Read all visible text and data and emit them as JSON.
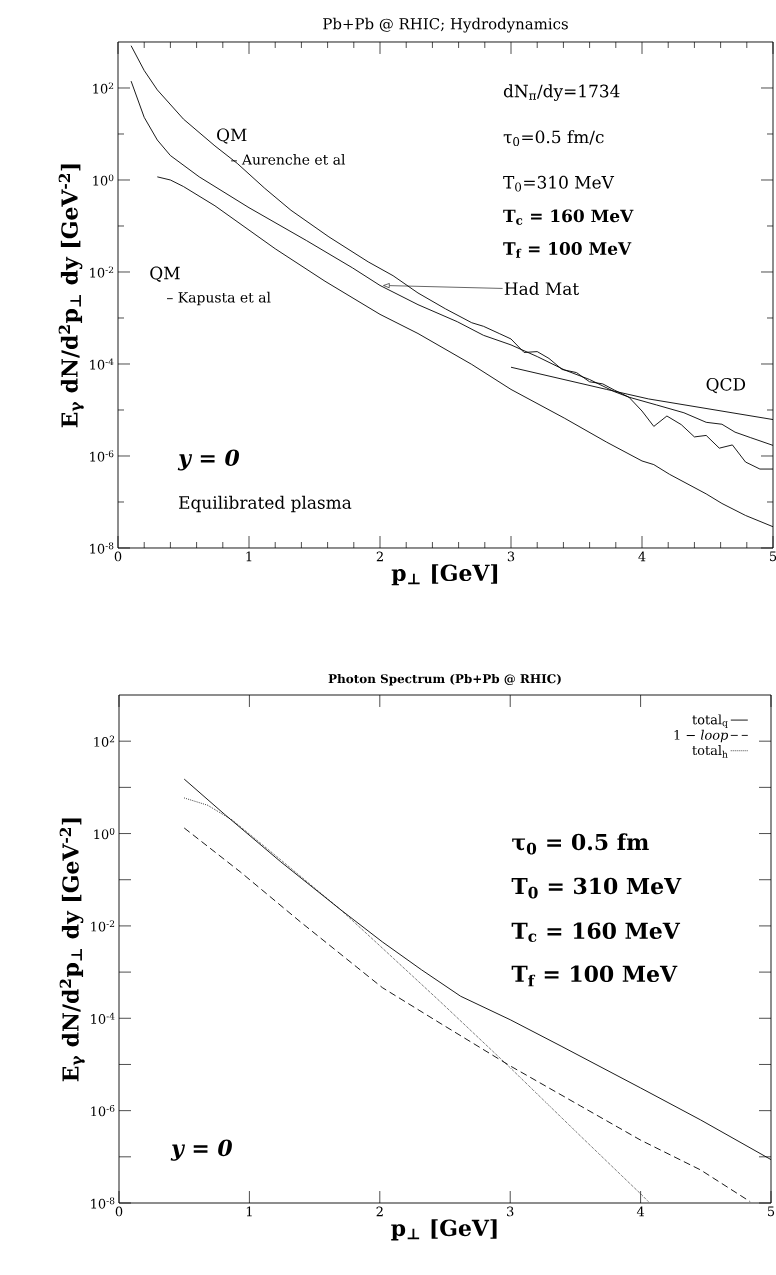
{
  "chart_data": [
    {
      "type": "line",
      "title": "Pb+Pb @ RHIC; Hydrodynamics",
      "xlabel": "p$_{⊥}$ [GeV]",
      "ylabel": "E$_{γ}$ dN/d$^{2}$p$_{⊥}$ dy [GeV$^{-2}$]",
      "log": "y",
      "grid": false,
      "legend": false,
      "marker": "none",
      "xlim": [
        0,
        5
      ],
      "ylim": [
        1e-08,
        1000
      ],
      "xticks": [
        0,
        1,
        2,
        3,
        4,
        5,
        {
          "value": 0.2,
          "label": null
        },
        {
          "value": 0.4,
          "label": null
        },
        {
          "value": 0.6,
          "label": null
        },
        {
          "value": 0.8,
          "label": null
        },
        {
          "value": 1.2,
          "label": null
        },
        {
          "value": 1.4,
          "label": null
        },
        {
          "value": 1.6,
          "label": null
        },
        {
          "value": 1.8,
          "label": null
        },
        {
          "value": 2.2,
          "label": null
        },
        {
          "value": 2.4,
          "label": null
        },
        {
          "value": 2.6,
          "label": null
        },
        {
          "value": 2.8,
          "label": null
        },
        {
          "value": 3.2,
          "label": null
        },
        {
          "value": 3.4,
          "label": null
        },
        {
          "value": 3.6,
          "label": null
        },
        {
          "value": 3.8,
          "label": null
        },
        {
          "value": 4.2,
          "label": null
        },
        {
          "value": 4.4,
          "label": null
        },
        {
          "value": 4.6,
          "label": null
        },
        {
          "value": 4.8,
          "label": null
        }
      ],
      "yticks": [
        {
          "value": 1e-08,
          "label": "10$^{-8}$"
        },
        {
          "value": 1e-06,
          "label": "10$^{-6}$"
        },
        {
          "value": 0.0001,
          "label": "10$^{-4}$"
        },
        {
          "value": 0.01,
          "label": "10$^{-2}$"
        },
        {
          "value": 1,
          "label": "10$^{0}$"
        },
        {
          "value": 100,
          "label": "10$^{2}$"
        },
        {
          "value": 1e-07,
          "label": null
        },
        {
          "value": 1e-05,
          "label": null
        },
        {
          "value": 0.001,
          "label": null
        },
        {
          "value": 0.1,
          "label": null
        },
        {
          "value": 10,
          "label": null
        }
      ],
      "series": [
        {
          "color": "#000000",
          "line_style": "solid",
          "x": [
            0.1,
            0.2,
            0.3,
            0.5,
            0.74,
            0.91,
            1.12,
            1.32,
            1.61,
            1.91,
            2.1,
            2.29,
            2.5,
            2.7,
            2.79,
            2.91,
            3.0,
            3.1,
            3.2,
            3.29,
            3.39,
            3.5,
            3.6,
            3.7,
            3.79,
            3.9,
            4.0,
            4.09,
            4.19,
            4.3,
            4.4,
            4.49,
            4.59,
            4.69,
            4.79,
            4.9,
            5.0
          ],
          "values": [
            830,
            240,
            91,
            21,
            5.5,
            2.3,
            0.66,
            0.22,
            0.058,
            0.0166,
            0.0083,
            0.0035,
            0.00158,
            0.00079,
            0.00066,
            0.00046,
            0.00035,
            0.000178,
            0.000186,
            0.000132,
            7.6e-05,
            6.5e-05,
            4.1e-05,
            3.7e-05,
            2.7e-05,
            1.9e-05,
            9.5e-06,
            4.4e-06,
            7.4e-06,
            4.8e-06,
            2.6e-06,
            2.8e-06,
            1.48e-06,
            1.74e-06,
            7.4e-07,
            5.2e-07,
            5.2e-07
          ]
        },
        {
          "color": "#000000",
          "line_style": "solid",
          "x": [
            0.1,
            0.2,
            0.3,
            0.4,
            0.62,
            1.0,
            1.44,
            1.79,
            2.0,
            2.29,
            2.59,
            2.79,
            3.0,
            3.2,
            3.41,
            3.6,
            3.79,
            3.9,
            4.11,
            4.32,
            4.49,
            4.61,
            4.71,
            4.83,
            5.0
          ],
          "values": [
            141,
            23,
            7.4,
            3.4,
            1.17,
            0.25,
            0.048,
            0.0123,
            0.0051,
            0.00195,
            0.00083,
            0.00042,
            0.00026,
            0.000145,
            7.4e-05,
            4.6e-05,
            2.5e-05,
            1.9e-05,
            1.29e-05,
            8.7e-06,
            5.4e-06,
            4.9e-06,
            3.3e-06,
            2.5e-06,
            1.7e-06
          ]
        },
        {
          "color": "#000000",
          "line_style": "solid",
          "x": [
            0.3,
            0.4,
            0.5,
            0.74,
            1.2,
            1.58,
            2.0,
            2.29,
            2.7,
            3.0,
            3.41,
            3.73,
            4.0,
            4.09,
            4.21,
            4.49,
            4.61,
            4.79,
            5.0
          ],
          "values": [
            1.17,
            1.0,
            0.72,
            0.275,
            0.032,
            0.0063,
            0.0012,
            0.00046,
            9.8e-05,
            2.8e-05,
            6.6e-06,
            2e-06,
            7.8e-07,
            6.5e-07,
            4e-07,
            1.5e-07,
            9.3e-08,
            5.1e-08,
            2.9e-08
          ]
        },
        {
          "color": "#000000",
          "line_style": "solid",
          "x": [
            3.0,
            3.73,
            4.05,
            5.0
          ],
          "values": [
            8.5e-05,
            2.8e-05,
            1.74e-05,
            6.2e-06
          ]
        }
      ],
      "annotations": [
        "QM",
        "– Aurenche et al",
        "QM",
        "– Kapusta et al",
        {
          "text": "Had Mat",
          "x": 2.02,
          "y": 0.0051
        },
        "QCD",
        "dN$_{π}$/dy=1734",
        "τ$_{0}$=0.5 fm/c",
        "T$_{0}$=310 MeV",
        "T$_{c}$ = 160 MeV",
        "T$_{f}$ = 100 MeV",
        "y = 0",
        "Equilibrated plasma"
      ]
    },
    {
      "type": "line",
      "title": "Photon Spectrum (Pb+Pb @ RHIC)",
      "xlabel": "p$_{⊥}$ [GeV]",
      "ylabel": "E$_{γ}$ dN/d$^{2}$p$_{⊥}$ dy [GeV$^{-2}$]",
      "log": "y",
      "grid": false,
      "legend": "top right",
      "marker": "none",
      "xlim": [
        0,
        5
      ],
      "ylim": [
        1e-08,
        1000
      ],
      "xticks": [
        0,
        1,
        2,
        3,
        4,
        5
      ],
      "yticks": [
        {
          "value": 1e-08,
          "label": "10$^{-8}$"
        },
        {
          "value": 1e-06,
          "label": "10$^{-6}$"
        },
        {
          "value": 0.0001,
          "label": "10$^{-4}$"
        },
        {
          "value": 0.01,
          "label": "10$^{-2}$"
        },
        {
          "value": 1,
          "label": "10$^{0}$"
        },
        {
          "value": 100,
          "label": "10$^{2}$"
        },
        {
          "value": 1e-07,
          "label": null
        },
        {
          "value": 1e-05,
          "label": null
        },
        {
          "value": 0.001,
          "label": null
        },
        {
          "value": 0.1,
          "label": null
        },
        {
          "value": 10,
          "label": null
        }
      ],
      "series": [
        {
          "name": "total$_{q}$",
          "color": "#000000",
          "line_style": "solid",
          "x": [
            0.5,
            0.81,
            1.24,
            1.7,
            2.02,
            2.32,
            2.62,
            3.0,
            3.39,
            4.0,
            4.46,
            5.0
          ],
          "values": [
            15.1,
            2.6,
            0.245,
            0.0224,
            0.0045,
            0.00112,
            0.0003,
            9.3e-05,
            2.5e-05,
            3.1e-06,
            6.3e-07,
            8.7e-08
          ]
        },
        {
          "name": "1 − *loop*",
          "color": "#000000",
          "line_style": "dashed",
          "x": [
            0.5,
            0.93,
            1.39,
            2.02,
            2.47,
            3.0,
            3.54,
            4.0,
            4.46,
            4.84
          ],
          "values": [
            1.32,
            0.148,
            0.0123,
            0.00046,
            7.6e-05,
            9.3e-06,
            1.26e-06,
            2.3e-07,
            5.2e-08,
            1.07e-08
          ]
        },
        {
          "name": "total$_{h}$",
          "color": "#000000",
          "line_style": "dotted",
          "x": [
            0.5,
            0.68,
            0.87,
            1.24,
            1.7,
            2.02,
            2.47,
            3.0,
            3.54,
            4.0,
            4.06
          ],
          "values": [
            5.9,
            4.1,
            1.95,
            0.27,
            0.0224,
            0.0033,
            0.00022,
            8.5e-06,
            2.8e-07,
            1.58e-08,
            1.07e-08
          ]
        }
      ],
      "annotations": [
        "τ$_{0}$ = 0.5 fm",
        "T$_{0}$ = 310 MeV",
        "T$_{c}$ = 160 MeV",
        "T$_{f}$ = 100 MeV",
        "y = 0"
      ]
    }
  ]
}
